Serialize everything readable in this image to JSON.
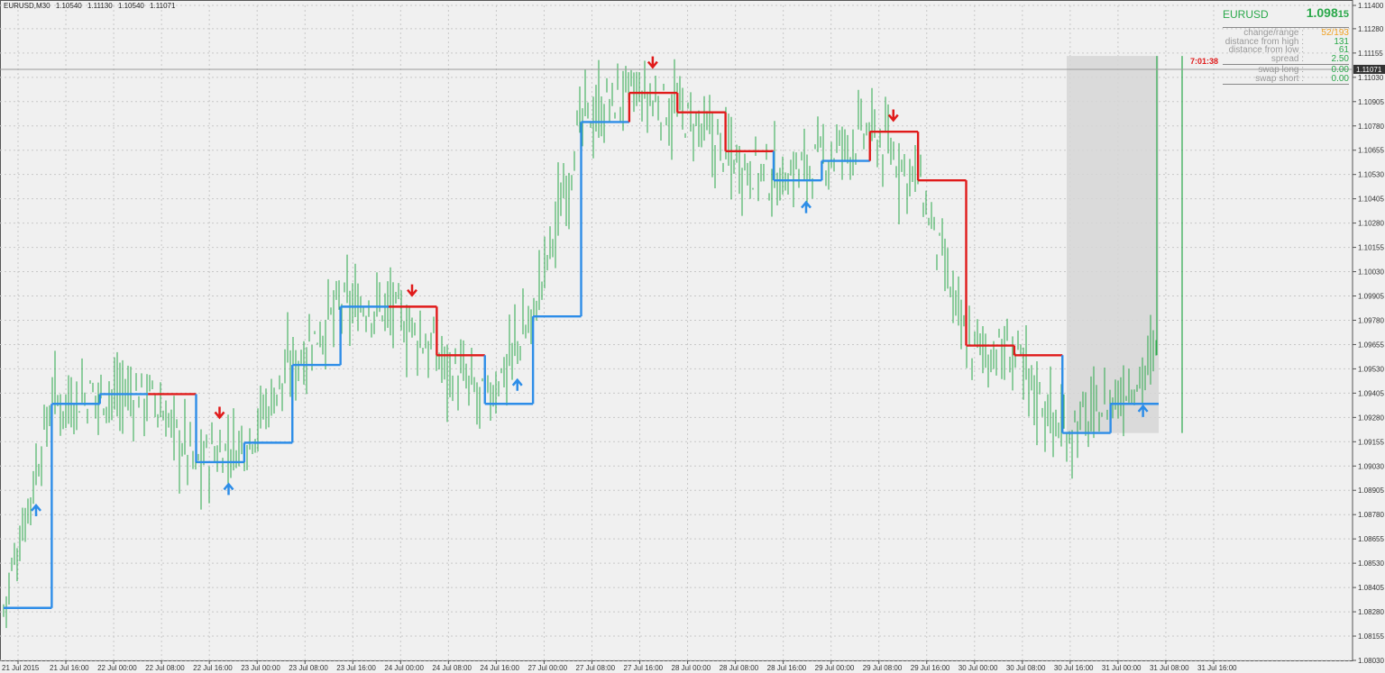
{
  "chart": {
    "symbol_line": {
      "symbol_tf": "EURUSD,M30",
      "open": "1.10540",
      "high": "1.11130",
      "low": "1.10540",
      "close": "1.11071"
    },
    "current_price_tag": "1.11071",
    "timer": "7:01:38"
  },
  "info_panel": {
    "symbol": "EURUSD",
    "price_main": "1.098",
    "price_last": "15",
    "rows": [
      {
        "label": "change/range :",
        "value": "52/193",
        "color": "#f0a020"
      },
      {
        "label": "distance from high :",
        "value": "131",
        "color": "#2aa84a"
      },
      {
        "label": "distance from low :",
        "value": "61",
        "color": "#2aa84a"
      },
      {
        "label": "spread :",
        "value": "2.50",
        "color": "#2aa84a"
      }
    ],
    "swap_rows": [
      {
        "label": "swap long :",
        "value": "0.00",
        "color": "#2aa84a"
      },
      {
        "label": "swap short :",
        "value": "0.00",
        "color": "#2aa84a"
      }
    ]
  },
  "colors": {
    "background": "#f0f0f0",
    "grid": "#c8c8c8",
    "candle": "#2aa84a",
    "up_line": "#2d8de8",
    "down_line": "#e01a1a",
    "box": "#d6d6d6",
    "timer": "#e01a1a"
  },
  "icons": [
    "up-arrow-icon",
    "down-arrow-icon"
  ],
  "chart_data": {
    "type": "line",
    "title": "EURUSD,M30",
    "xlabel": "",
    "ylabel": "",
    "ylim": [
      1.0803,
      1.114
    ],
    "grid": true,
    "y_ticks": [
      "1.11400",
      "1.11280",
      "1.11155",
      "1.11030",
      "1.10905",
      "1.10780",
      "1.10655",
      "1.10530",
      "1.10405",
      "1.10280",
      "1.10155",
      "1.10030",
      "1.09905",
      "1.09780",
      "1.09655",
      "1.09530",
      "1.09405",
      "1.09280",
      "1.09155",
      "1.09030",
      "1.08905",
      "1.08780",
      "1.08655",
      "1.08530",
      "1.08405",
      "1.08280",
      "1.08155",
      "1.08030"
    ],
    "x_ticks": [
      "21 Jul 2015",
      "21 Jul 16:00",
      "22 Jul 00:00",
      "22 Jul 08:00",
      "22 Jul 16:00",
      "23 Jul 00:00",
      "23 Jul 08:00",
      "23 Jul 16:00",
      "24 Jul 00:00",
      "24 Jul 08:00",
      "24 Jul 16:00",
      "27 Jul 00:00",
      "27 Jul 08:00",
      "27 Jul 16:00",
      "28 Jul 00:00",
      "28 Jul 08:00",
      "28 Jul 16:00",
      "29 Jul 00:00",
      "29 Jul 08:00",
      "29 Jul 16:00",
      "30 Jul 00:00",
      "30 Jul 08:00",
      "30 Jul 16:00",
      "31 Jul 00:00",
      "31 Jul 08:00",
      "31 Jul 16:00"
    ],
    "series": [
      {
        "x": [
          "21 Jul 2015",
          "21 Jul 16:00",
          "22 Jul 00:00",
          "22 Jul 08:00",
          "22 Jul 16:00",
          "23 Jul 00:00",
          "23 Jul 08:00",
          "23 Jul 16:00",
          "24 Jul 00:00",
          "24 Jul 08:00",
          "24 Jul 16:00",
          "27 Jul 00:00",
          "27 Jul 08:00",
          "27 Jul 16:00",
          "28 Jul 00:00",
          "28 Jul 08:00",
          "28 Jul 16:00",
          "29 Jul 00:00",
          "29 Jul 08:00",
          "29 Jul 16:00",
          "30 Jul 00:00",
          "30 Jul 08:00",
          "30 Jul 16:00",
          "31 Jul 00:00",
          "31 Jul 08:00"
        ],
        "values": [
          1.083,
          1.0935,
          1.094,
          1.094,
          1.0905,
          1.0915,
          1.0955,
          1.0985,
          1.0985,
          1.096,
          1.0935,
          1.098,
          1.108,
          1.1095,
          1.1085,
          1.1065,
          1.105,
          1.106,
          1.1075,
          1.105,
          1.0965,
          1.096,
          1.092,
          1.0935,
          1.096
        ]
      }
    ],
    "annotations": {
      "down_arrows": [
        "22 Jul 16:00",
        "24 Jul 00:00",
        "27 Jul 16:00",
        "29 Jul 08:00"
      ],
      "up_arrows": [
        "21 Jul 2015",
        "22 Jul 16:00",
        "24 Jul 16:00",
        "28 Jul 16:00",
        "31 Jul 00:00"
      ]
    }
  }
}
